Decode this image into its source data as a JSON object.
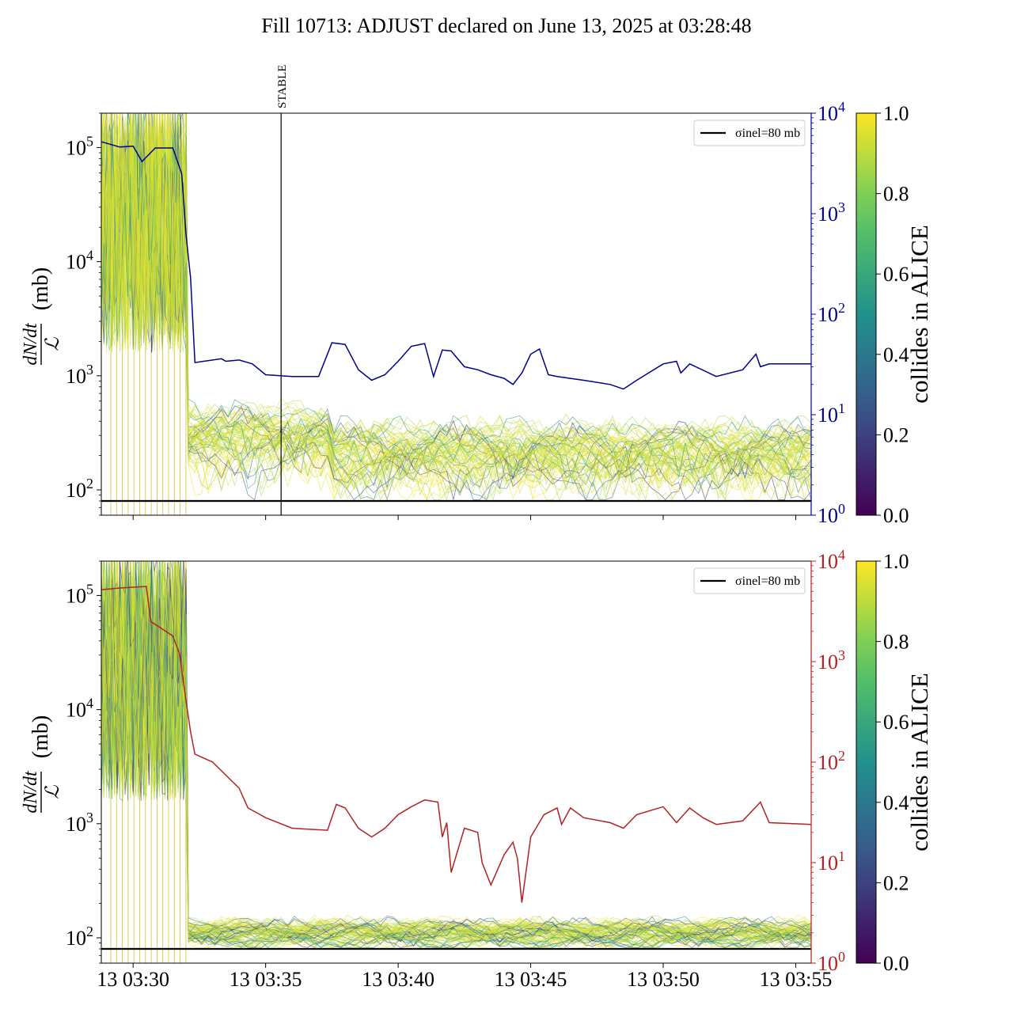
{
  "title": "Fill 10713: ADJUST declared on June 13, 2025 at 03:28:48",
  "chart_data": [
    {
      "type": "line",
      "panel": "top",
      "left_axis": {
        "label_numerator": "dN/dt",
        "label_denominator": "ℒ",
        "label_unit": "(mb)",
        "scale": "log",
        "ylim": [
          60,
          200000
        ],
        "ticks": [
          "10^2",
          "10^3",
          "10^4",
          "10^5"
        ]
      },
      "right_axis": {
        "scale": "log",
        "ylim": [
          1,
          10000
        ],
        "ticks": [
          "10^0",
          "10^1",
          "10^2",
          "10^3",
          "10^4"
        ],
        "color": "#00008b"
      },
      "x_axis": {
        "ticks": [
          "13 03:30",
          "13 03:35",
          "13 03:40",
          "13 03:45",
          "13 03:50",
          "13 03:55"
        ],
        "xlim": [
          "03:28:48",
          "03:55:35"
        ]
      },
      "vertical_marker": {
        "label": "STABLE",
        "time": "03:35:35"
      },
      "reference_line": {
        "label": "σinel=80 mb",
        "value": 80
      },
      "colorbar": {
        "label": "collides in ALICE",
        "range": [
          0,
          1
        ],
        "ticks": [
          "0.0",
          "0.2",
          "0.4",
          "0.6",
          "0.8",
          "1.0"
        ],
        "colormap": "viridis"
      },
      "series": [
        {
          "axis": "right",
          "color": "#00008b",
          "x": [
            "03:28:48",
            "03:29:30",
            "03:30:00",
            "03:30:20",
            "03:30:50",
            "03:31:30",
            "03:31:50",
            "03:32:00",
            "03:32:10",
            "03:32:20",
            "03:33:00",
            "03:33:20",
            "03:33:30",
            "03:34:00",
            "03:34:30",
            "03:35:00",
            "03:36:00",
            "03:37:00",
            "03:37:30",
            "03:38:00",
            "03:38:30",
            "03:39:00",
            "03:39:30",
            "03:40:00",
            "03:40:30",
            "03:41:00",
            "03:41:20",
            "03:41:40",
            "03:42:00",
            "03:42:30",
            "03:43:00",
            "03:43:30",
            "03:44:00",
            "03:44:20",
            "03:44:40",
            "03:45:00",
            "03:45:20",
            "03:45:40",
            "03:46:00",
            "03:47:00",
            "03:48:00",
            "03:48:30",
            "03:49:00",
            "03:50:00",
            "03:50:30",
            "03:50:40",
            "03:51:00",
            "03:52:00",
            "03:53:00",
            "03:53:30",
            "03:53:40",
            "03:54:00",
            "03:55:35"
          ],
          "y": [
            5200,
            4600,
            4700,
            3300,
            4500,
            4500,
            2500,
            600,
            230,
            33,
            35,
            36,
            34,
            35,
            32,
            25,
            24,
            24,
            52,
            50,
            28,
            22,
            25,
            34,
            48,
            51,
            24,
            44,
            43,
            30,
            28,
            25,
            23,
            20,
            26,
            40,
            45,
            25,
            24,
            22,
            20,
            18,
            22,
            32,
            34,
            26,
            32,
            24,
            28,
            40,
            30,
            32,
            32
          ]
        }
      ]
    },
    {
      "type": "line",
      "panel": "bottom",
      "left_axis": {
        "label_numerator": "dN/dt",
        "label_denominator": "ℒ",
        "label_unit": "(mb)",
        "scale": "log",
        "ylim": [
          60,
          200000
        ],
        "ticks": [
          "10^2",
          "10^3",
          "10^4",
          "10^5"
        ]
      },
      "right_axis": {
        "scale": "log",
        "ylim": [
          1,
          10000
        ],
        "ticks": [
          "10^0",
          "10^1",
          "10^2",
          "10^3",
          "10^4"
        ],
        "color": "#b22222"
      },
      "x_axis": {
        "ticks": [
          "13 03:30",
          "13 03:35",
          "13 03:40",
          "13 03:45",
          "13 03:50",
          "13 03:55"
        ],
        "xlim": [
          "03:28:48",
          "03:55:35"
        ]
      },
      "reference_line": {
        "label": "σinel=80 mb",
        "value": 80
      },
      "colorbar": {
        "label": "collides in ALICE",
        "range": [
          0,
          1
        ],
        "ticks": [
          "0.0",
          "0.2",
          "0.4",
          "0.6",
          "0.8",
          "1.0"
        ],
        "colormap": "viridis"
      },
      "series": [
        {
          "axis": "right",
          "color": "#b22222",
          "x": [
            "03:28:48",
            "03:29:30",
            "03:30:30",
            "03:30:40",
            "03:31:00",
            "03:31:30",
            "03:31:45",
            "03:32:00",
            "03:32:10",
            "03:32:20",
            "03:33:00",
            "03:34:00",
            "03:34:20",
            "03:35:00",
            "03:36:00",
            "03:37:20",
            "03:37:40",
            "03:38:00",
            "03:38:30",
            "03:39:00",
            "03:39:30",
            "03:40:00",
            "03:40:30",
            "03:41:00",
            "03:41:30",
            "03:41:40",
            "03:41:50",
            "03:42:00",
            "03:42:30",
            "03:43:00",
            "03:43:10",
            "03:43:30",
            "03:44:00",
            "03:44:20",
            "03:44:30",
            "03:44:40",
            "03:45:00",
            "03:45:30",
            "03:46:00",
            "03:46:10",
            "03:46:30",
            "03:47:00",
            "03:48:00",
            "03:48:30",
            "03:49:00",
            "03:50:00",
            "03:50:30",
            "03:51:00",
            "03:51:30",
            "03:52:00",
            "03:53:00",
            "03:53:40",
            "03:54:00",
            "03:55:35"
          ],
          "y": [
            5200,
            5400,
            5600,
            2500,
            2200,
            1800,
            1200,
            400,
            200,
            120,
            100,
            55,
            35,
            28,
            22,
            21,
            38,
            35,
            22,
            18,
            22,
            30,
            36,
            42,
            40,
            18,
            25,
            8,
            22,
            20,
            10,
            6,
            12,
            16,
            11,
            4,
            18,
            30,
            35,
            24,
            35,
            28,
            25,
            22,
            30,
            36,
            25,
            35,
            28,
            24,
            26,
            40,
            25,
            24
          ]
        }
      ]
    }
  ]
}
